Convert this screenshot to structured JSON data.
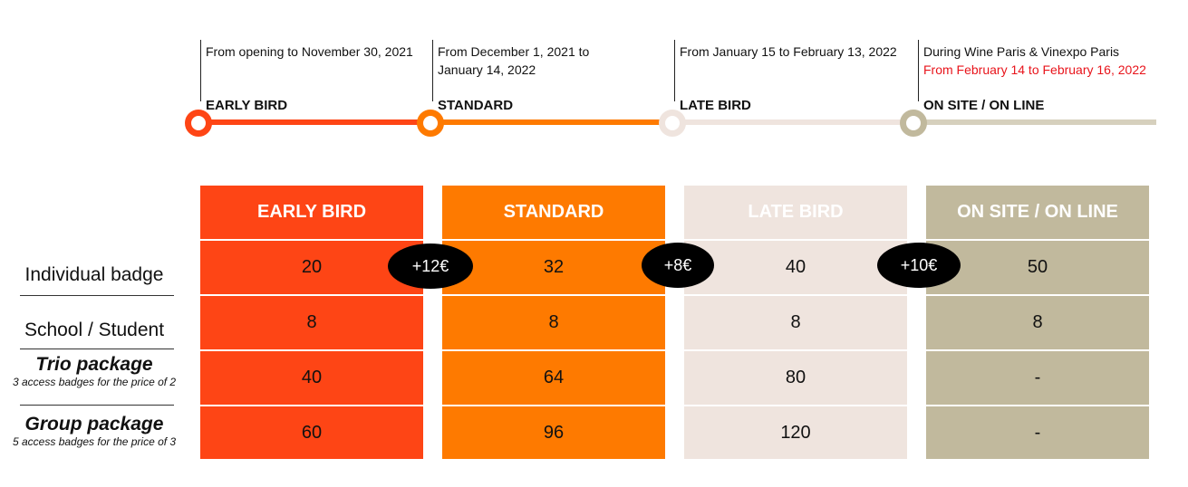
{
  "colors": {
    "early_bird": "#fe4515",
    "standard": "#fe7a00",
    "late_bird": "#efe4de",
    "on_site": "#c1b99d",
    "highlight_red": "#e8141b"
  },
  "timeline": {
    "phases": [
      {
        "name": "EARLY BIRD",
        "period": "From opening to November 30, 2021"
      },
      {
        "name": "STANDARD",
        "period_line1": "From December 1, 2021 to",
        "period_line2": "January 14, 2022"
      },
      {
        "name": "LATE BIRD",
        "period": "From January 15 to February 13, 2022"
      },
      {
        "name": "ON SITE / ON LINE",
        "period_line1": "During Wine Paris & Vinexpo Paris",
        "period_line2": "From February 14 to February 16, 2022"
      }
    ]
  },
  "table": {
    "columns": [
      {
        "header": "EARLY BIRD",
        "values": [
          "20",
          "8",
          "40",
          "60"
        ]
      },
      {
        "header": "STANDARD",
        "values": [
          "32",
          "8",
          "64",
          "96"
        ]
      },
      {
        "header": "LATE BIRD",
        "values": [
          "40",
          "8",
          "80",
          "120"
        ]
      },
      {
        "header": "ON SITE / ON LINE",
        "values": [
          "50",
          "8",
          "-",
          "-"
        ]
      }
    ],
    "rows": [
      {
        "label": "Individual badge"
      },
      {
        "label": "School / Student"
      },
      {
        "label": "Trio package",
        "note": "3 access badges for the price of 2"
      },
      {
        "label": "Group package",
        "note": "5 access badges for the price of 3"
      }
    ],
    "increments": [
      "+12€",
      "+8€",
      "+10€"
    ]
  }
}
